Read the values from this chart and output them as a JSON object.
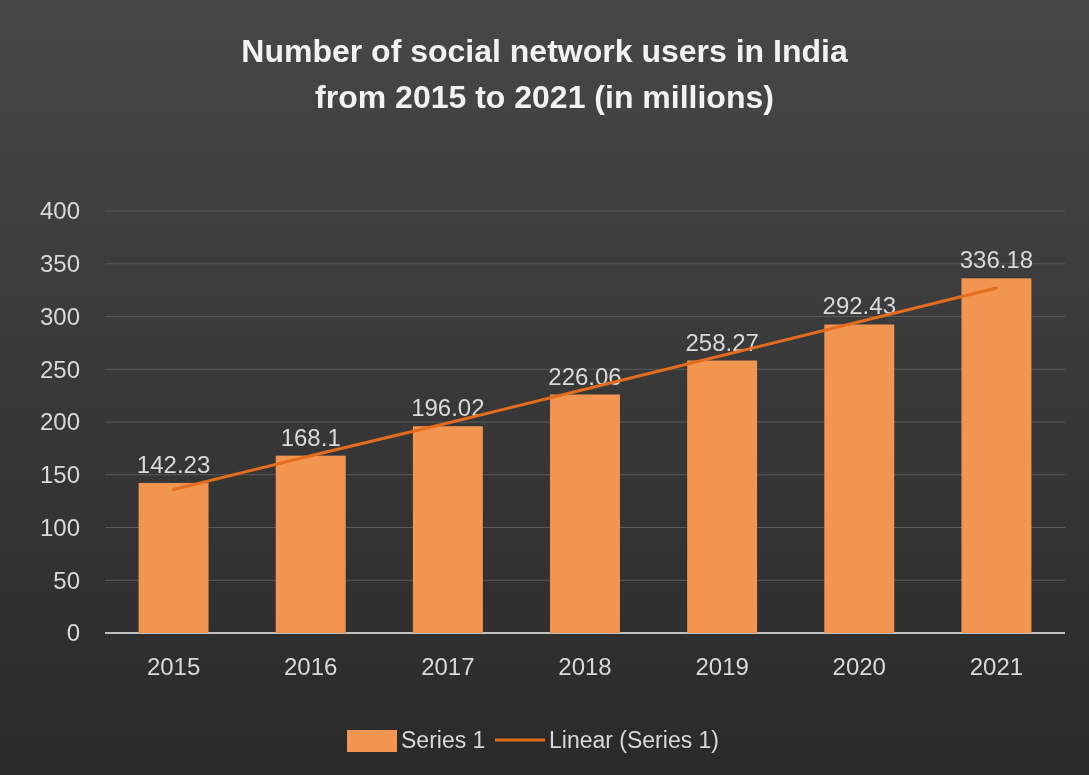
{
  "chart_data": {
    "type": "bar",
    "title": "Number of social network users in India\nfrom 2015 to 2021 (in millions)",
    "categories": [
      "2015",
      "2016",
      "2017",
      "2018",
      "2019",
      "2020",
      "2021"
    ],
    "series": [
      {
        "name": "Series 1",
        "color": "#f29550",
        "values": [
          142.23,
          168.1,
          196.02,
          226.06,
          258.27,
          292.43,
          336.18
        ],
        "value_labels": [
          "142.23",
          "168.1",
          "196.02",
          "226.06",
          "258.27",
          "292.43",
          "336.18"
        ]
      },
      {
        "name": "Linear (Series 1)",
        "type": "line",
        "color": "#e36c1e",
        "values": [
          136,
          168,
          199,
          231,
          263,
          295,
          327
        ]
      }
    ],
    "ylim": [
      0,
      400
    ],
    "yticks": [
      0,
      50,
      100,
      150,
      200,
      250,
      300,
      350,
      400
    ],
    "grid": "y",
    "legend": "bottom"
  }
}
